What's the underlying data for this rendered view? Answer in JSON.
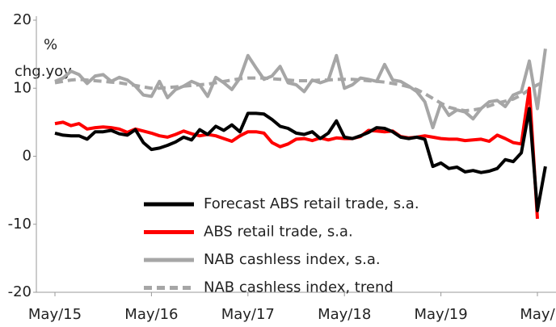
{
  "chart_data": {
    "type": "line",
    "y_label_lines": [
      "%",
      "chg.yoy"
    ],
    "categories": [
      "May/15",
      null,
      null,
      null,
      null,
      null,
      null,
      null,
      null,
      null,
      null,
      null,
      "May/16",
      null,
      null,
      null,
      null,
      null,
      null,
      null,
      null,
      null,
      null,
      null,
      "May/17",
      null,
      null,
      null,
      null,
      null,
      null,
      null,
      null,
      null,
      null,
      null,
      "May/18",
      null,
      null,
      null,
      null,
      null,
      null,
      null,
      null,
      null,
      null,
      null,
      "May/19",
      null,
      null,
      null,
      null,
      null,
      null,
      null,
      null,
      null,
      null,
      null,
      "May/",
      null
    ],
    "series": [
      {
        "name": "Forecast ABS retail trade, s.a.",
        "color": "#000000",
        "dash": false,
        "values": [
          3.4,
          3.1,
          3.0,
          3.0,
          2.5,
          3.6,
          3.6,
          3.8,
          3.3,
          3.1,
          3.9,
          2.0,
          1.0,
          1.2,
          1.6,
          2.1,
          2.8,
          2.4,
          3.9,
          3.2,
          4.4,
          3.8,
          4.6,
          3.6,
          6.3,
          6.3,
          6.2,
          5.4,
          4.4,
          4.1,
          3.4,
          3.2,
          3.6,
          2.6,
          3.4,
          5.2,
          2.8,
          2.6,
          3.0,
          3.5,
          4.2,
          4.1,
          3.6,
          2.8,
          2.6,
          2.8,
          2.5,
          -1.5,
          -1.0,
          -1.8,
          -1.6,
          -2.3,
          -2.1,
          -2.4,
          -2.2,
          -1.8,
          -0.5,
          -0.8,
          0.5,
          7.0,
          -8.0,
          -1.5
        ]
      },
      {
        "name": "ABS retail trade, s.a.",
        "color": "#ff0000",
        "dash": false,
        "values": [
          4.8,
          5.0,
          4.5,
          4.8,
          4.0,
          4.2,
          4.3,
          4.2,
          4.0,
          3.5,
          4.0,
          3.7,
          3.4,
          3.0,
          2.8,
          3.2,
          3.7,
          3.3,
          3.0,
          3.2,
          3.0,
          2.6,
          2.2,
          3.0,
          3.6,
          3.6,
          3.4,
          2.0,
          1.4,
          1.8,
          2.5,
          2.6,
          2.3,
          2.7,
          2.4,
          2.7,
          2.6,
          2.6,
          2.9,
          3.8,
          3.7,
          3.6,
          3.7,
          2.9,
          2.7,
          2.8,
          3.0,
          2.8,
          2.6,
          2.5,
          2.5,
          2.3,
          2.4,
          2.5,
          2.2,
          3.1,
          2.6,
          2.0,
          1.8,
          10.0,
          -9.2,
          null
        ]
      },
      {
        "name": "NAB cashless index, s.a.",
        "color": "#a6a6a6",
        "dash": false,
        "values": [
          11.0,
          11.5,
          12.5,
          12.0,
          10.7,
          11.8,
          12.0,
          11.0,
          11.6,
          11.2,
          10.3,
          9.0,
          8.8,
          11.0,
          8.6,
          9.8,
          10.3,
          11.0,
          10.5,
          8.8,
          11.6,
          10.8,
          9.8,
          11.5,
          14.8,
          13.0,
          11.3,
          11.8,
          13.2,
          10.8,
          10.5,
          9.5,
          11.2,
          10.8,
          11.2,
          14.8,
          10.0,
          10.5,
          11.5,
          11.3,
          11.0,
          13.5,
          11.2,
          11.0,
          10.3,
          9.5,
          8.0,
          4.2,
          7.8,
          6.0,
          6.8,
          6.5,
          5.5,
          7.0,
          8.0,
          8.2,
          7.3,
          9.0,
          9.5,
          14.0,
          7.0,
          15.8
        ]
      },
      {
        "name": "NAB cashless index, trend",
        "color": "#a6a6a6",
        "dash": true,
        "values": [
          10.8,
          11.0,
          11.2,
          11.3,
          11.2,
          11.1,
          11.0,
          10.9,
          10.8,
          10.6,
          10.4,
          10.2,
          10.0,
          10.0,
          10.1,
          10.2,
          10.3,
          10.4,
          10.5,
          10.6,
          10.8,
          11.0,
          11.2,
          11.4,
          11.5,
          11.5,
          11.5,
          11.4,
          11.3,
          11.2,
          11.1,
          11.1,
          11.1,
          11.2,
          11.2,
          11.3,
          11.3,
          11.3,
          11.2,
          11.1,
          11.0,
          10.9,
          10.7,
          10.5,
          10.2,
          9.8,
          9.2,
          8.5,
          7.8,
          7.2,
          6.9,
          6.7,
          6.8,
          7.0,
          7.4,
          7.8,
          8.1,
          8.4,
          9.0,
          9.8,
          10.5,
          11.0
        ]
      }
    ],
    "ylim": [
      -20,
      20
    ],
    "yticks": [
      -20,
      -10,
      0,
      10,
      20
    ],
    "grid": false,
    "legend": "lower center"
  }
}
